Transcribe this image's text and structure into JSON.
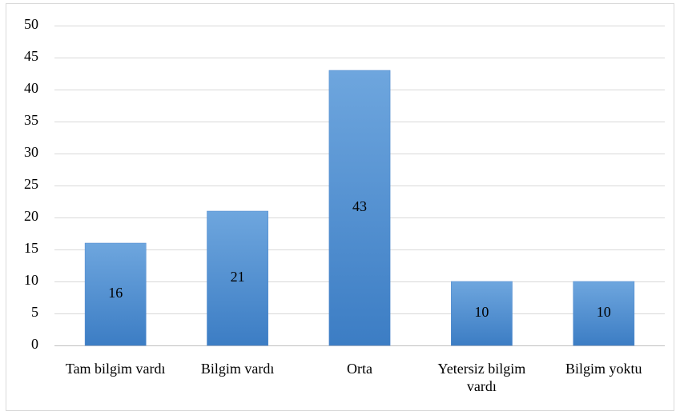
{
  "chart_data": {
    "type": "bar",
    "categories": [
      "Tam bilgim vardı",
      "Bilgim vardı",
      "Orta",
      "Yetersiz bilgim vardı",
      "Bilgim yoktu"
    ],
    "values": [
      16,
      21,
      43,
      10,
      10
    ],
    "color": "#4a86cc",
    "ylim": [
      0,
      50
    ],
    "yticks": [
      0,
      5,
      10,
      15,
      20,
      25,
      30,
      35,
      40,
      45,
      50
    ],
    "grid": true
  }
}
